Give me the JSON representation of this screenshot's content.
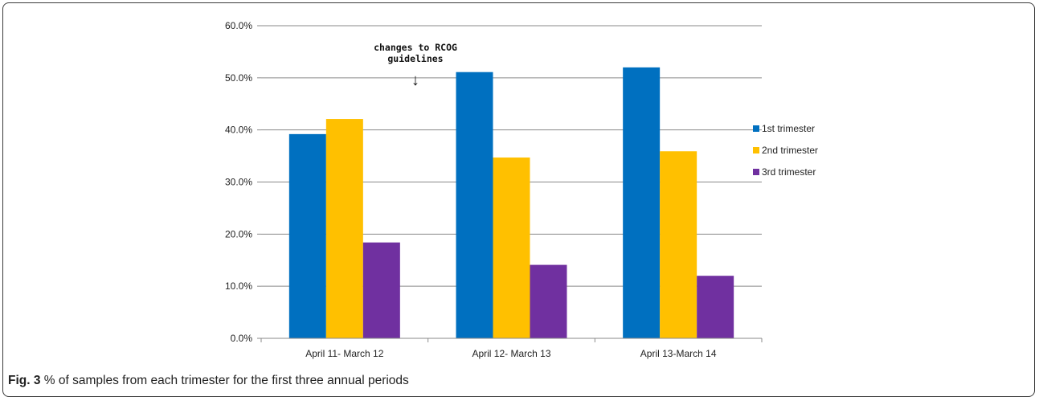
{
  "caption": {
    "label": "Fig. 3",
    "text": "% of samples from each trimester for the first three annual periods"
  },
  "colors": {
    "1st": "#0070C0",
    "2nd": "#FFC000",
    "3rd": "#7030A0"
  },
  "chart_data": {
    "type": "bar",
    "categories": [
      "April 11- March 12",
      "April 12- March 13",
      "April 13-March 14"
    ],
    "series": [
      {
        "name": "1st trimester",
        "values": [
          39.2,
          51.1,
          52.0
        ]
      },
      {
        "name": "2nd trimester",
        "values": [
          42.1,
          34.7,
          35.9
        ]
      },
      {
        "name": "3rd trimester",
        "values": [
          18.4,
          14.1,
          12.0
        ]
      }
    ],
    "ylim": [
      0,
      60
    ],
    "yticks": [
      "0.0%",
      "10.0%",
      "20.0%",
      "30.0%",
      "40.0%",
      "50.0%",
      "60.0%"
    ],
    "grid": true,
    "legend": "right",
    "annotation": {
      "line1": "changes to RCOG",
      "line2": "guidelines",
      "arrow": "↓"
    }
  }
}
